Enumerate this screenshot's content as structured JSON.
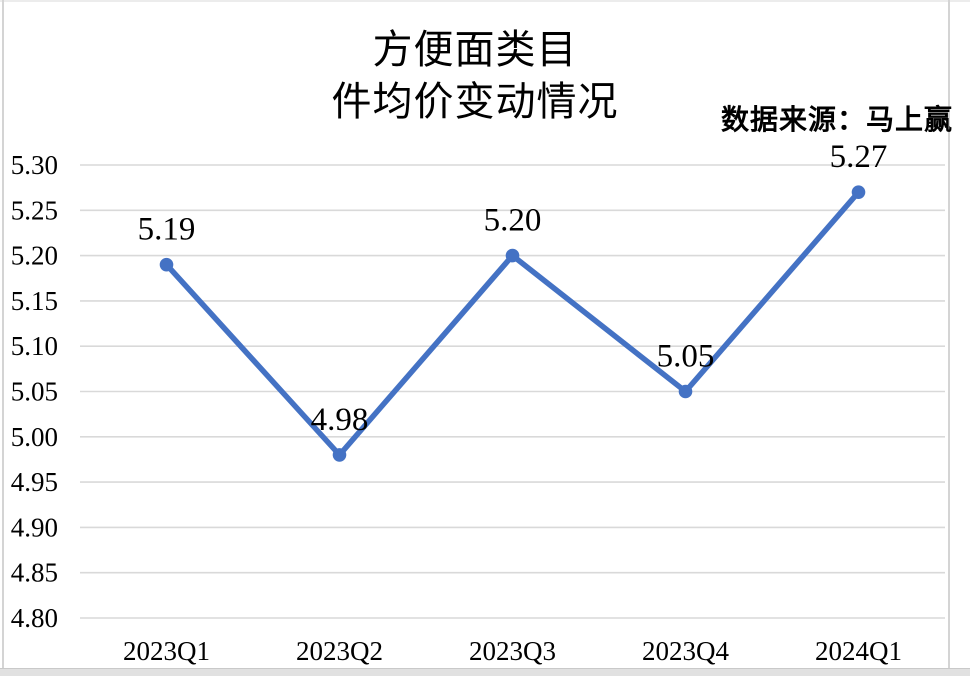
{
  "window": {
    "bg_color": "#ffffff",
    "frame_line_color": "#d4d4d4",
    "bottom_bar_color": "#e1e1e1"
  },
  "header": {
    "title_line1": "方便面类目",
    "title_line2": "件均价变动情况",
    "source_note": "数据来源：马上赢"
  },
  "chart_data": {
    "type": "line",
    "title": "方便面类目 件均价变动情况",
    "source_note": "数据来源：马上赢",
    "categories": [
      "2023Q1",
      "2023Q2",
      "2023Q3",
      "2023Q4",
      "2024Q1"
    ],
    "values": [
      5.19,
      4.98,
      5.2,
      5.05,
      5.27
    ],
    "data_labels": [
      "5.19",
      "4.98",
      "5.20",
      "5.05",
      "5.27"
    ],
    "y_ticks": [
      "5.30",
      "5.25",
      "5.20",
      "5.15",
      "5.10",
      "5.05",
      "5.00",
      "4.95",
      "4.90",
      "4.85",
      "4.80"
    ],
    "ylim": [
      4.8,
      5.3
    ],
    "y_step": 0.05,
    "xlabel": "",
    "ylabel": "",
    "grid": true,
    "legend": "none",
    "line_color": "#4472C4",
    "marker": "circle",
    "gridline_color": "#D9D9D9",
    "text_color": "#000000"
  }
}
